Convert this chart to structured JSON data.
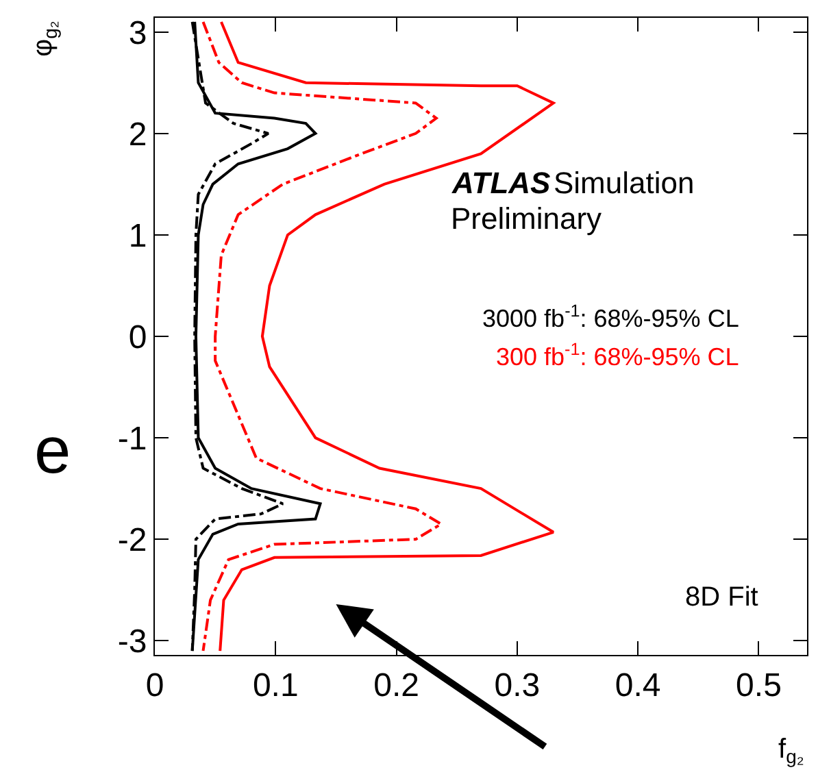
{
  "chart_data": {
    "type": "line",
    "xlabel": "f$_{g₂}$",
    "ylabel": "φ$_{g₂}$",
    "xlim": [
      0,
      0.54
    ],
    "ylim": [
      -3.14,
      3.14
    ],
    "xticks": [
      0,
      0.1,
      0.2,
      0.3,
      0.4,
      0.5
    ],
    "yticks": [
      -3,
      -2,
      -1,
      0,
      1,
      2,
      3
    ],
    "series": [
      {
        "name": "3000 fb$^{-1}$: 68%-95% CL",
        "color": "#000000",
        "line_style": "solid",
        "x": [
          0.033,
          0.036,
          0.05,
          0.099,
          0.125,
          0.133,
          0.11,
          0.069,
          0.048,
          0.04,
          0.036,
          0.034,
          0.036,
          0.05,
          0.08,
          0.137,
          0.133,
          0.069,
          0.048,
          0.036,
          0.031
        ],
        "values": [
          3.1,
          2.5,
          2.2,
          2.15,
          2.1,
          2.0,
          1.85,
          1.7,
          1.5,
          1.3,
          1.0,
          0,
          -1.0,
          -1.3,
          -1.5,
          -1.65,
          -1.8,
          -1.85,
          -1.95,
          -2.2,
          -3.1
        ]
      },
      {
        "color": "#000000",
        "line_style": "dashdot",
        "x": [
          0.031,
          0.042,
          0.065,
          0.094,
          0.08,
          0.05,
          0.036,
          0.034,
          0.033,
          0.034,
          0.04,
          0.072,
          0.106,
          0.088,
          0.05,
          0.034,
          0.033,
          0.031
        ],
        "values": [
          3.1,
          2.3,
          2.1,
          2.0,
          1.9,
          1.7,
          1.4,
          1.0,
          0,
          -1.0,
          -1.3,
          -1.5,
          -1.65,
          -1.75,
          -1.8,
          -2.0,
          -2.5,
          -3.1
        ]
      },
      {
        "name": "300 fb$^{-1}$: 68%-95% CL",
        "color": "#ff0000",
        "line_style": "solid",
        "x": [
          0.055,
          0.069,
          0.125,
          0.27,
          0.3,
          0.33,
          0.27,
          0.19,
          0.133,
          0.11,
          0.095,
          0.089,
          0.095,
          0.133,
          0.186,
          0.27,
          0.33,
          0.27,
          0.099,
          0.072,
          0.057,
          0.054
        ],
        "values": [
          3.1,
          2.7,
          2.5,
          2.47,
          2.47,
          2.3,
          1.8,
          1.5,
          1.2,
          1.0,
          0.5,
          0,
          -0.3,
          -1.0,
          -1.3,
          -1.5,
          -1.93,
          -2.16,
          -2.18,
          -2.3,
          -2.6,
          -3.1
        ]
      },
      {
        "color": "#ff0000",
        "line_style": "dashdot",
        "x": [
          0.04,
          0.053,
          0.072,
          0.099,
          0.216,
          0.233,
          0.216,
          0.171,
          0.106,
          0.069,
          0.055,
          0.05,
          0.05,
          0.084,
          0.137,
          0.216,
          0.237,
          0.216,
          0.099,
          0.061,
          0.046,
          0.04
        ],
        "values": [
          3.1,
          2.7,
          2.5,
          2.4,
          2.3,
          2.15,
          2.0,
          1.8,
          1.5,
          1.2,
          0.8,
          0,
          -0.24,
          -1.2,
          -1.5,
          -1.7,
          -1.85,
          -2.0,
          -2.05,
          -2.2,
          -2.6,
          -3.1
        ]
      }
    ],
    "annotations": [
      "ATLAS",
      "Simulation",
      "Preliminary",
      "8D Fit",
      "e"
    ]
  }
}
